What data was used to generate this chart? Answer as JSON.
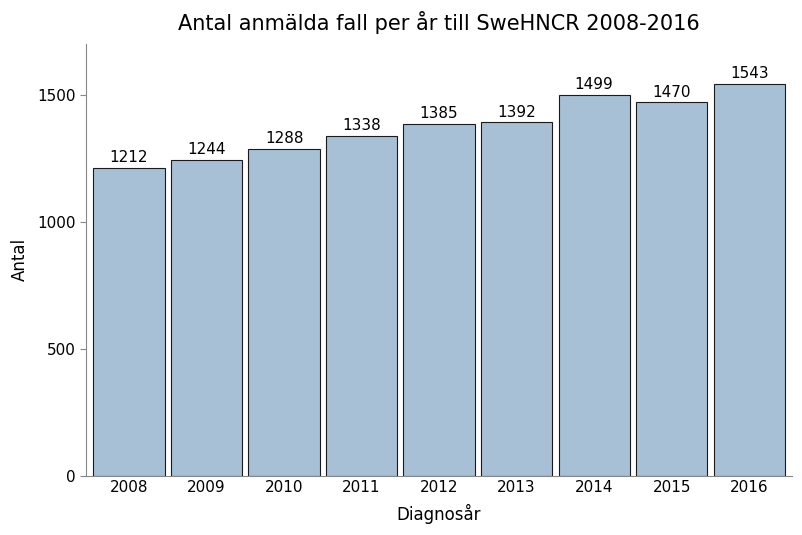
{
  "title": "Antal anmälda fall per år till SweHNCR 2008-2016",
  "xlabel": "Diagnosår",
  "ylabel": "Antal",
  "categories": [
    2008,
    2009,
    2010,
    2011,
    2012,
    2013,
    2014,
    2015,
    2016
  ],
  "values": [
    1212,
    1244,
    1288,
    1338,
    1385,
    1392,
    1499,
    1470,
    1543
  ],
  "bar_color": "#a8c0d6",
  "bar_edgecolor": "#1a1a1a",
  "ylim": [
    0,
    1700
  ],
  "yticks": [
    0,
    500,
    1000,
    1500
  ],
  "title_fontsize": 15,
  "label_fontsize": 12,
  "tick_fontsize": 11,
  "annotation_fontsize": 11,
  "background_color": "#ffffff",
  "bar_width": 0.92,
  "figwidth": 8.03,
  "figheight": 5.35
}
